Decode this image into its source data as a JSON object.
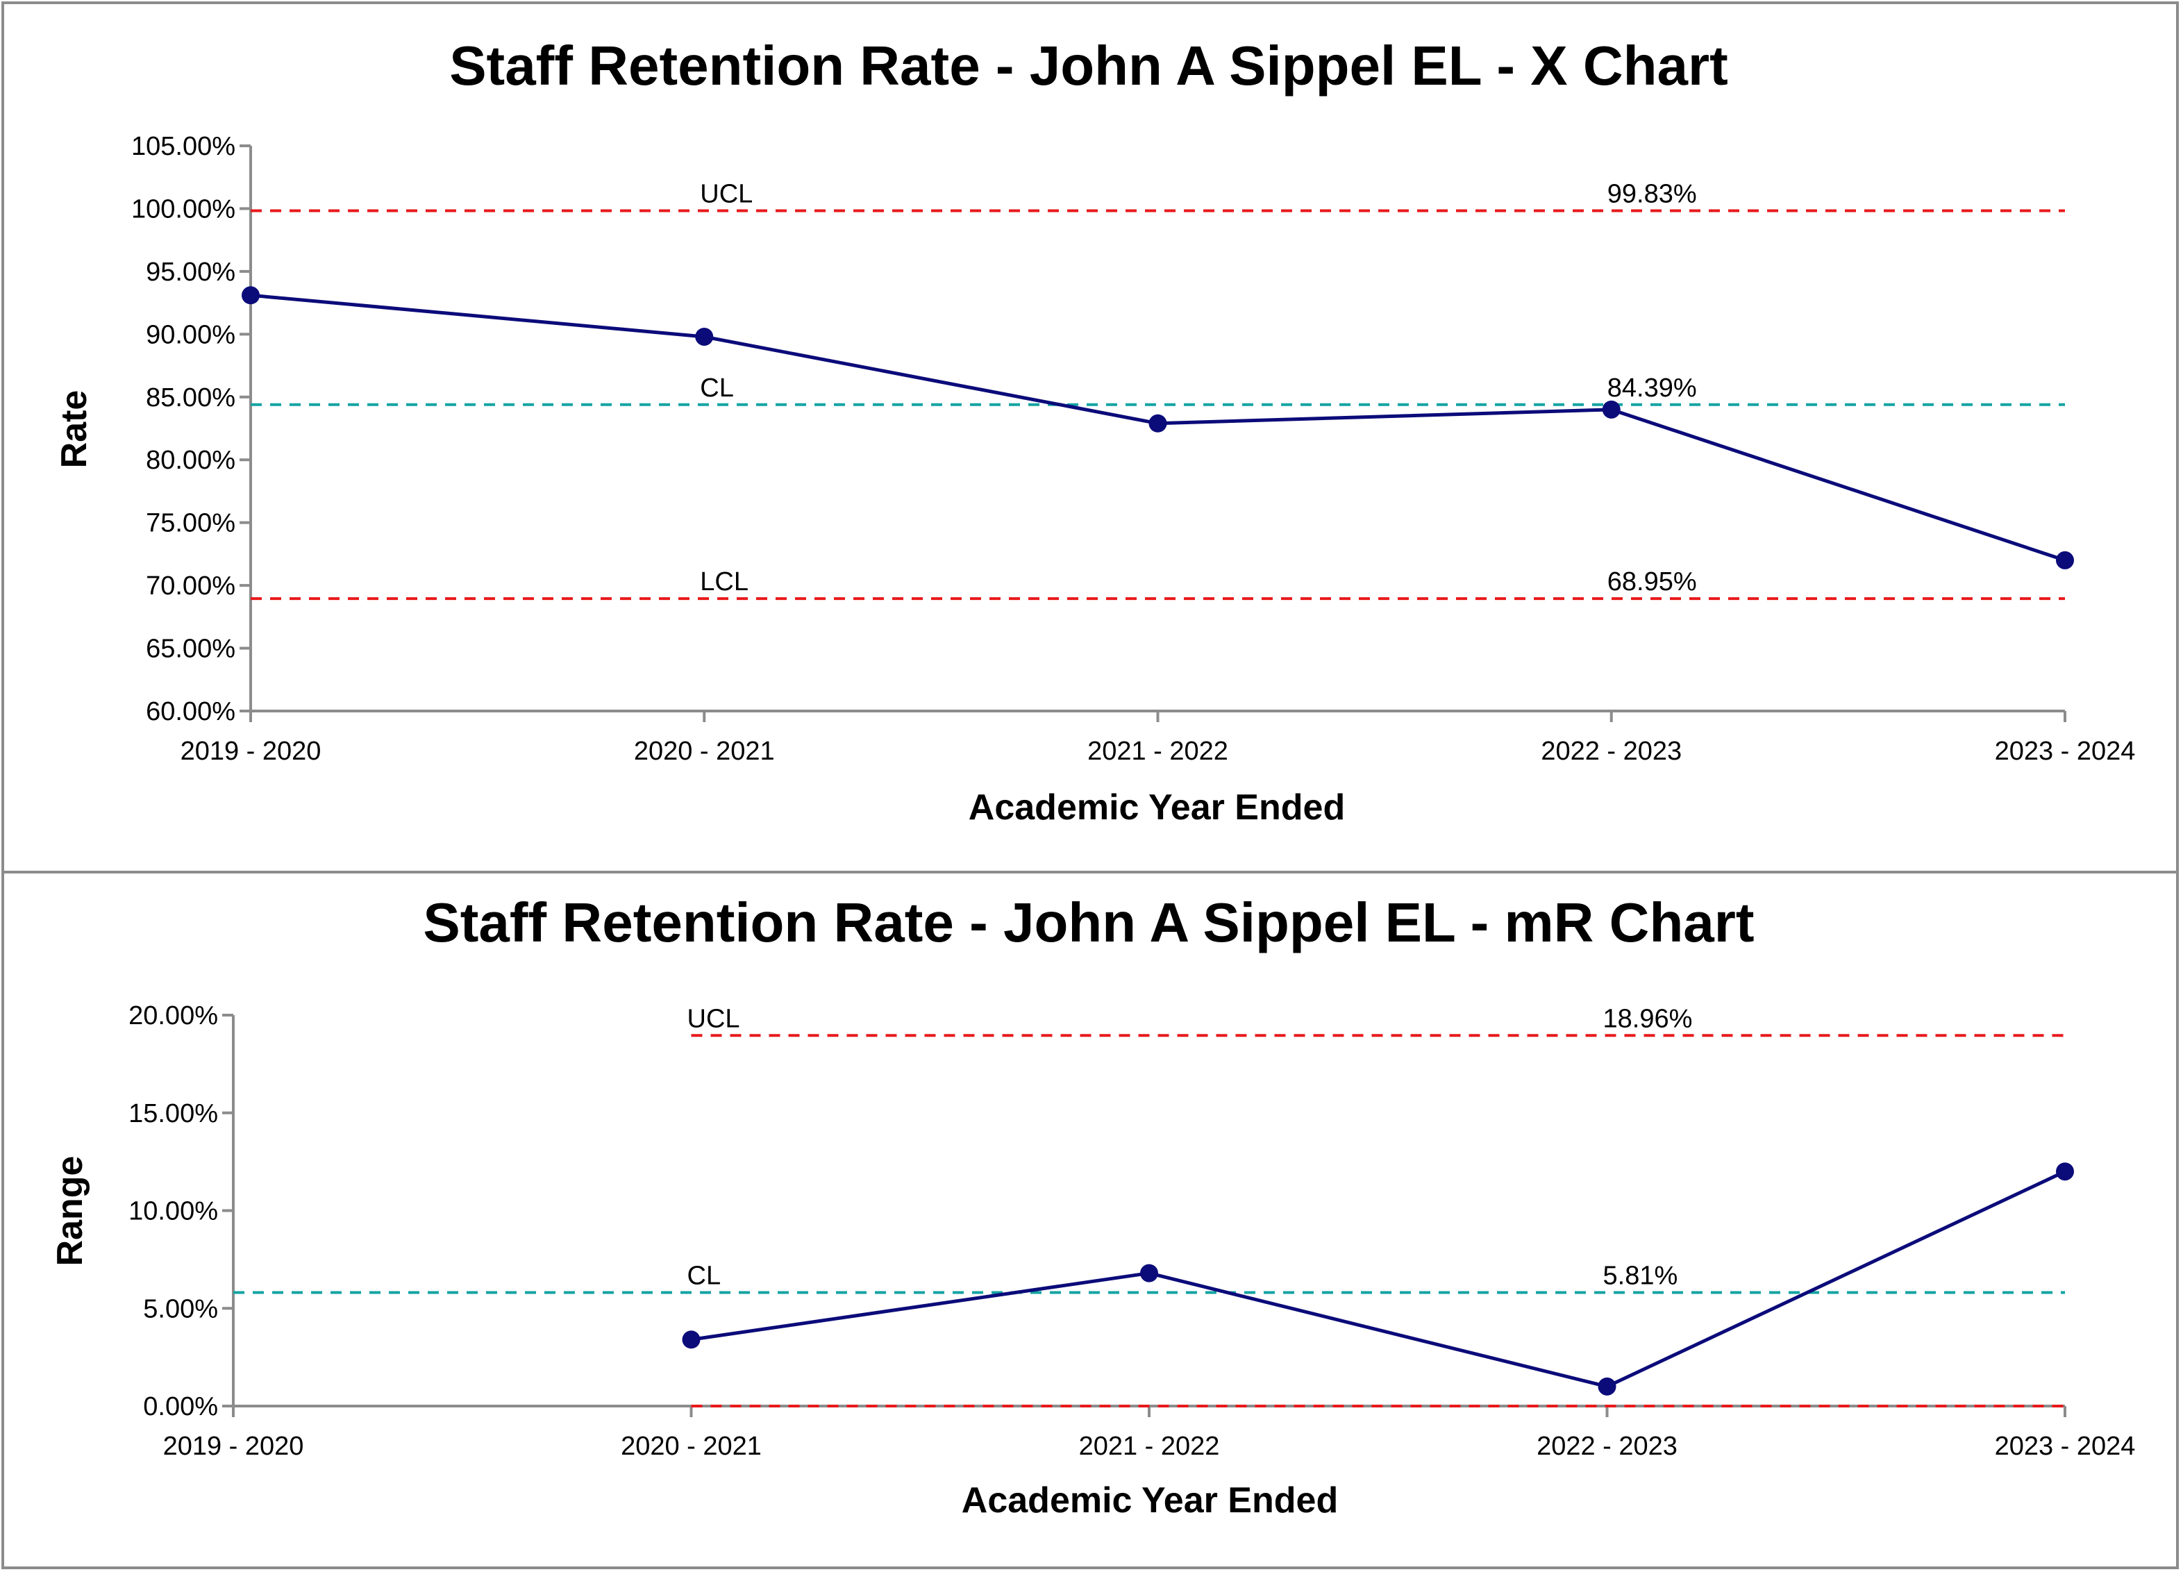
{
  "chart_data": [
    {
      "type": "line",
      "title": "Staff Retention Rate - John A Sippel EL - X Chart",
      "xlabel": "Academic Year Ended",
      "ylabel": "Rate",
      "categories": [
        "2019 - 2020",
        "2020 - 2021",
        "2021 - 2022",
        "2022 - 2023",
        "2023 - 2024"
      ],
      "y_ticks": [
        "60.00%",
        "65.00%",
        "70.00%",
        "75.00%",
        "80.00%",
        "85.00%",
        "90.00%",
        "95.00%",
        "100.00%",
        "105.00%"
      ],
      "ylim": [
        60,
        105
      ],
      "series": [
        {
          "values": [
            93.1,
            89.8,
            82.9,
            84.0,
            72.0
          ],
          "color": "#0b0b7a"
        }
      ],
      "control_lines": [
        {
          "label": "UCL",
          "value": 99.83,
          "value_label": "99.83%",
          "color": "#e8191b"
        },
        {
          "label": "CL",
          "value": 84.39,
          "value_label": "84.39%",
          "color": "#15a3a3"
        },
        {
          "label": "LCL",
          "value": 68.95,
          "value_label": "68.95%",
          "color": "#e8191b"
        }
      ],
      "grid": false,
      "legend": "none"
    },
    {
      "type": "line",
      "title": "Staff Retention Rate - John A Sippel EL - mR Chart",
      "xlabel": "Academic Year Ended",
      "ylabel": "Range",
      "categories": [
        "2019 - 2020",
        "2020 - 2021",
        "2021 - 2022",
        "2022 - 2023",
        "2023 - 2024"
      ],
      "y_ticks": [
        "0.00%",
        "5.00%",
        "10.00%",
        "15.00%",
        "20.00%"
      ],
      "ylim": [
        0,
        20
      ],
      "series": [
        {
          "values": [
            null,
            3.4,
            6.8,
            1.0,
            12.0
          ],
          "color": "#0b0b7a"
        }
      ],
      "control_lines": [
        {
          "label": "UCL",
          "value": 18.96,
          "value_label": "18.96%",
          "color": "#e8191b",
          "start_index": 1
        },
        {
          "label": "CL",
          "value": 5.81,
          "value_label": "5.81%",
          "color": "#15a3a3",
          "start_index": 0
        },
        {
          "label": "",
          "value": 0,
          "value_label": "",
          "color": "#e8191b",
          "start_index": 1
        }
      ],
      "grid": false,
      "legend": "none"
    }
  ]
}
